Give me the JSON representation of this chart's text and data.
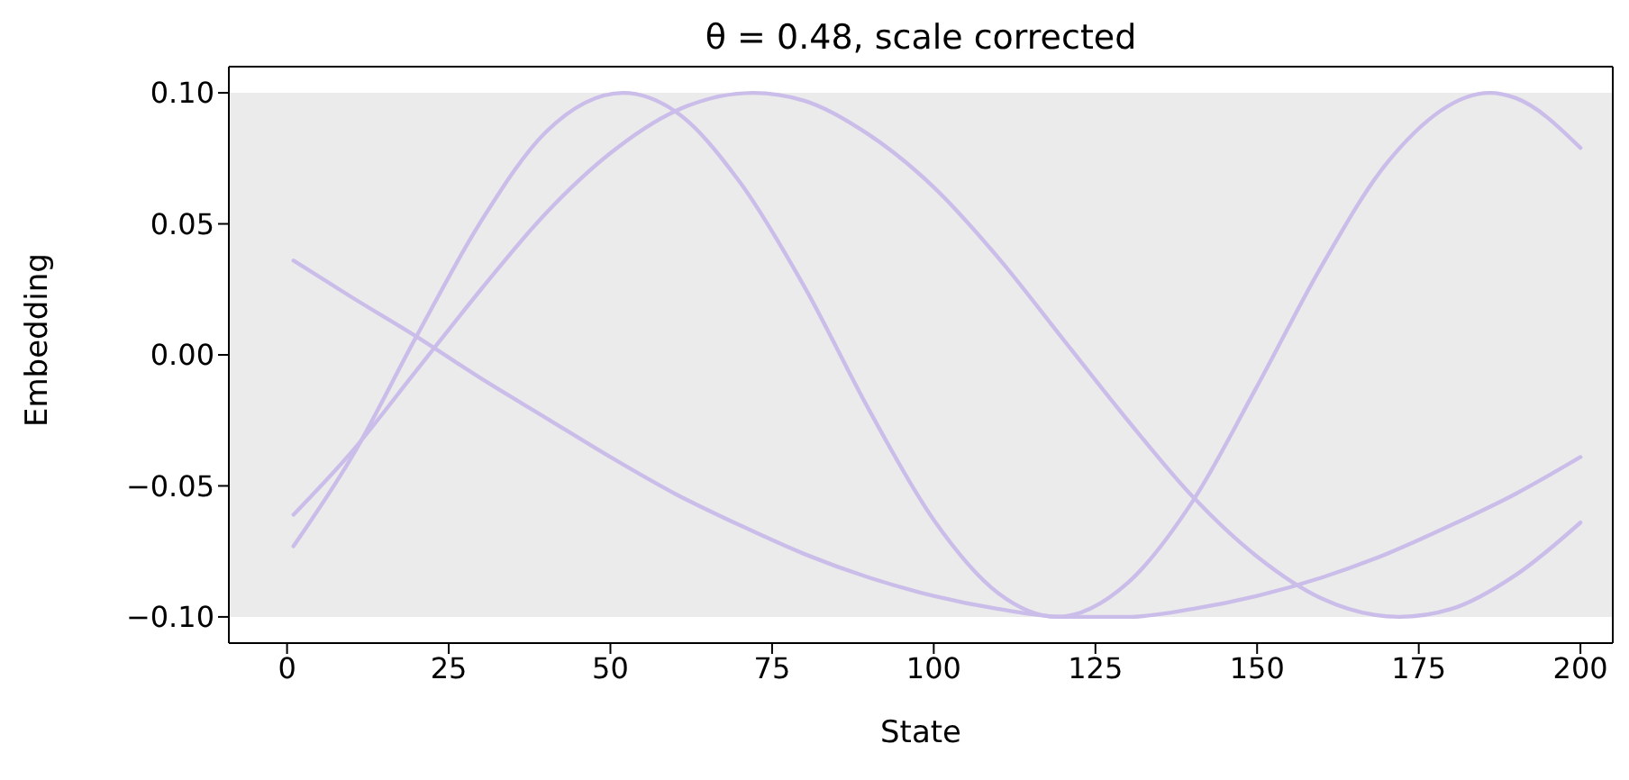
{
  "chart_data": {
    "type": "line",
    "title": "θ = 0.48, scale corrected",
    "xlabel": "State",
    "ylabel": "Embedding",
    "xlim": [
      -9,
      205
    ],
    "xticks": [
      0,
      25,
      50,
      75,
      100,
      125,
      150,
      175,
      200
    ],
    "ylim": [
      -0.11,
      0.11
    ],
    "yticks": [
      {
        "value": -0.1,
        "label": "−0.10"
      },
      {
        "value": -0.05,
        "label": "−0.05"
      },
      {
        "value": 0,
        "label": "0.00"
      },
      {
        "value": 0.05,
        "label": "0.05"
      },
      {
        "value": 0.1,
        "label": "0.10"
      }
    ],
    "bands": [
      {
        "axis": "y",
        "from": -0.1,
        "to": 0.1,
        "color": "#ebebeb"
      }
    ],
    "grid": false,
    "legend": false,
    "marker": "none",
    "line_style": "solid",
    "series": [
      {
        "color": "#cbbde9",
        "x": [
          1,
          10,
          20,
          30,
          40,
          50,
          60,
          70,
          80,
          90,
          100,
          110,
          120,
          125,
          130,
          140,
          150,
          160,
          170,
          180,
          190,
          200
        ],
        "values": [
          0.036,
          0.022,
          0.007,
          -0.009,
          -0.024,
          -0.039,
          -0.053,
          -0.065,
          -0.076,
          -0.085,
          -0.092,
          -0.097,
          -0.1,
          -0.1,
          -0.1,
          -0.097,
          -0.092,
          -0.085,
          -0.076,
          -0.065,
          -0.053,
          -0.039
        ]
      },
      {
        "color": "#cbbde9",
        "x": [
          1,
          10,
          20,
          30,
          40,
          50,
          60,
          72,
          80,
          90,
          100,
          110,
          120,
          130,
          140,
          150,
          160,
          172,
          180,
          190,
          200
        ],
        "values": [
          -0.061,
          -0.037,
          -0.006,
          0.025,
          0.054,
          0.077,
          0.093,
          0.1,
          0.097,
          0.084,
          0.064,
          0.037,
          0.006,
          -0.025,
          -0.054,
          -0.077,
          -0.093,
          -0.1,
          -0.097,
          -0.084,
          -0.064
        ]
      },
      {
        "color": "#cbbde9",
        "x": [
          1,
          10,
          20,
          30,
          40,
          52,
          60,
          70,
          80,
          90,
          100,
          110,
          119,
          130,
          140,
          150,
          160,
          170,
          186,
          190,
          200
        ],
        "values": [
          -0.073,
          -0.039,
          0.007,
          0.051,
          0.085,
          0.1,
          0.093,
          0.066,
          0.026,
          -0.021,
          -0.063,
          -0.091,
          -0.1,
          -0.087,
          -0.056,
          -0.012,
          0.034,
          0.073,
          0.1,
          0.098,
          0.079
        ]
      }
    ]
  }
}
